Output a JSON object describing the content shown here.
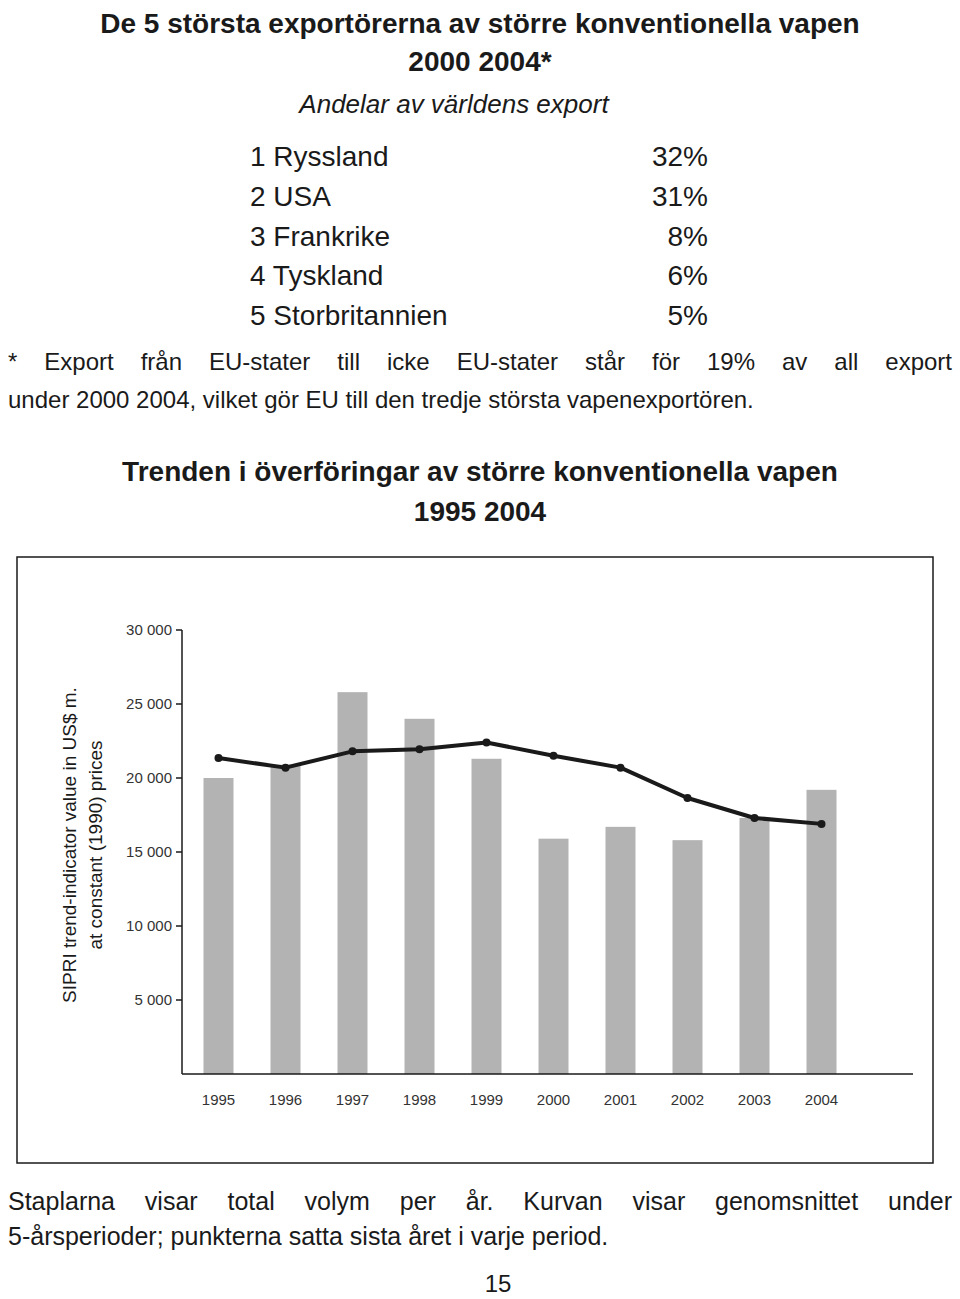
{
  "header": {
    "title": "De 5 största exportörerna av större konventionella vapen",
    "subtitle": "2000 2004*",
    "caption": "Andelar av världens export"
  },
  "ranking": {
    "rows": [
      [
        "1 Ryssland",
        "32%"
      ],
      [
        "2 USA",
        "31%"
      ],
      [
        "3 Frankrike",
        "8%"
      ],
      [
        "4 Tyskland",
        "6%"
      ],
      [
        "5 Storbritannien",
        "5%"
      ]
    ]
  },
  "note": {
    "lines": [
      "* Export från EU-stater till icke EU-stater står för 19% av all export",
      "under 2000 2004, vilket gör EU till den tredje största vapenexportören."
    ]
  },
  "chart_data": {
    "type": "bar",
    "title": "Trenden i överföringar av större konventionella vapen",
    "subtitle": "1995 2004",
    "ylabel": [
      "SIPRI trend-indicator value in US$ m.",
      "at constant (1990) prices"
    ],
    "categories": [
      "1995",
      "1996",
      "1997",
      "1998",
      "1999",
      "2000",
      "2001",
      "2002",
      "2003",
      "2004"
    ],
    "series": [
      {
        "type": "bar",
        "color": "#b3b3b3",
        "values": [
          20000,
          20900,
          25800,
          24000,
          21300,
          15900,
          16700,
          15800,
          17300,
          19200
        ]
      },
      {
        "type": "line",
        "color": "#1a1a1a",
        "marker": "circle",
        "values": [
          21350,
          20700,
          21800,
          21950,
          22400,
          21500,
          20700,
          18650,
          17300,
          16900
        ]
      }
    ],
    "ylim": [
      0,
      30000
    ],
    "yticks": [
      {
        "value": 5000,
        "label": "5 000"
      },
      {
        "value": 10000,
        "label": "10 000"
      },
      {
        "value": 15000,
        "label": "15 000"
      },
      {
        "value": 20000,
        "label": "20 000"
      },
      {
        "value": 25000,
        "label": "25 000"
      },
      {
        "value": 30000,
        "label": "30 000"
      }
    ],
    "grid": false
  },
  "footer": {
    "lines": [
      "Staplarna visar total volym per år. Kurvan visar genomsnittet under",
      "5-årsperioder; punkterna satta sista året i varje period."
    ],
    "page_number": "15"
  }
}
